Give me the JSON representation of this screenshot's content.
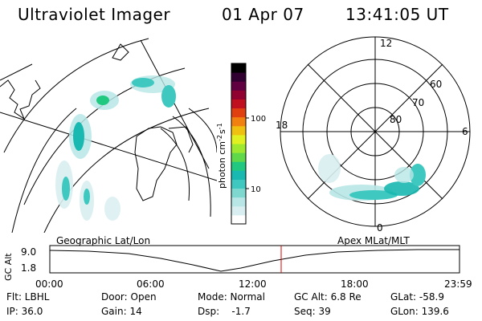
{
  "header": {
    "title": "Ultraviolet Imager",
    "date": "01 Apr 07",
    "time": "13:41:05 UT"
  },
  "colorbar": {
    "unit_label": "photon cm",
    "unit_exp1": "-2",
    "unit_mid": "s",
    "unit_exp2": "-1",
    "ticks": [
      "100",
      "10"
    ],
    "colors": [
      "#ffffff",
      "#d8eef0",
      "#b8e6e6",
      "#7fd8d0",
      "#3ec8c0",
      "#19b8b0",
      "#20c880",
      "#5fd84a",
      "#9fe830",
      "#e0f020",
      "#f0c010",
      "#f08010",
      "#e04010",
      "#c01020",
      "#900030",
      "#600040",
      "#300030",
      "#000000"
    ]
  },
  "polar": {
    "hour_labels": [
      "12",
      "18",
      "6",
      "0"
    ],
    "lat_labels": [
      "60",
      "70",
      "80"
    ]
  },
  "timeline": {
    "left_title": "Geographic Lat/Lon",
    "right_title": "Apex MLat/MLT",
    "y_axis_label": "GC Alt",
    "y_ticks": [
      "9.0",
      "1.8"
    ],
    "x_ticks": [
      "00:00",
      "06:00",
      "12:00",
      "18:00",
      "23:59"
    ],
    "marker_color": "#dd0000"
  },
  "footer": {
    "flt": "Flt: LBHL",
    "ip": "IP: 36.0",
    "door": "Door: Open",
    "gain": "Gain: 14",
    "mode": "Mode: Normal",
    "dsp": "Dsp:    -1.7",
    "gc_alt": "GC Alt: 6.8 Re",
    "seq": "Seq: 39",
    "glat": "GLat: -58.9",
    "glon": "GLon: 139.6"
  }
}
